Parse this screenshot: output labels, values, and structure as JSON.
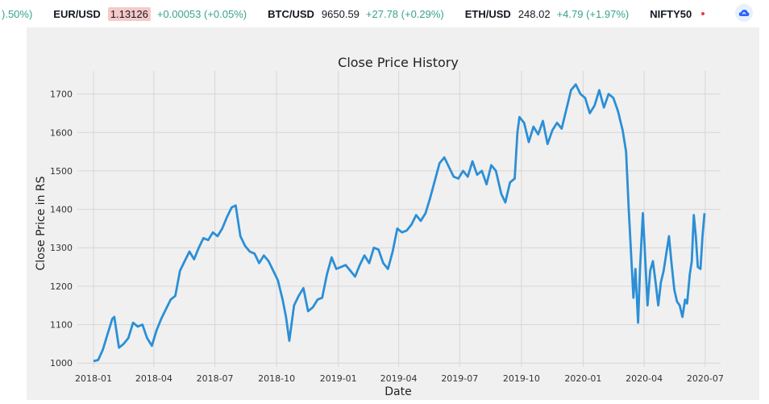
{
  "ticker": [
    {
      "symbol": "",
      "price": "",
      "change": ").50%)",
      "highlight": false
    },
    {
      "symbol": "EUR/USD",
      "price": "1.13126",
      "change": "+0.00053 (+0.05%)",
      "highlight": true
    },
    {
      "symbol": "BTC/USD",
      "price": "9650.59",
      "change": "+27.78 (+0.29%)",
      "highlight": false
    },
    {
      "symbol": "ETH/USD",
      "price": "248.02",
      "change": "+4.79 (+1.97%)",
      "highlight": false
    },
    {
      "symbol": "NIFTY50",
      "price": "",
      "change": "",
      "highlight": false
    }
  ],
  "colors": {
    "up": "#37a38a",
    "down": "#f23645",
    "line": "#2b8fd6"
  },
  "icons": {
    "logo": "tradingview-cloud-icon"
  },
  "chart_data": {
    "type": "line",
    "title": "Close Price History",
    "xlabel": "Date",
    "ylabel": "Close Price in RS",
    "ylim": [
      990,
      1760
    ],
    "xlim": [
      "2017-12-08",
      "2020-07-24"
    ],
    "yticks": [
      1000,
      1100,
      1200,
      1300,
      1400,
      1500,
      1600,
      1700
    ],
    "xticks": [
      "2018-01",
      "2018-04",
      "2018-07",
      "2018-10",
      "2019-01",
      "2019-04",
      "2019-07",
      "2019-10",
      "2020-01",
      "2020-04",
      "2020-07"
    ],
    "grid": true,
    "series": [
      {
        "name": "",
        "points": [
          [
            "2018-01-01",
            1005
          ],
          [
            "2018-01-08",
            1008
          ],
          [
            "2018-01-15",
            1035
          ],
          [
            "2018-01-22",
            1075
          ],
          [
            "2018-01-29",
            1115
          ],
          [
            "2018-02-01",
            1120
          ],
          [
            "2018-02-08",
            1040
          ],
          [
            "2018-02-15",
            1050
          ],
          [
            "2018-02-22",
            1065
          ],
          [
            "2018-03-01",
            1105
          ],
          [
            "2018-03-08",
            1095
          ],
          [
            "2018-03-15",
            1100
          ],
          [
            "2018-03-22",
            1065
          ],
          [
            "2018-03-29",
            1045
          ],
          [
            "2018-04-05",
            1085
          ],
          [
            "2018-04-12",
            1115
          ],
          [
            "2018-04-19",
            1140
          ],
          [
            "2018-04-26",
            1165
          ],
          [
            "2018-05-03",
            1175
          ],
          [
            "2018-05-10",
            1240
          ],
          [
            "2018-05-17",
            1265
          ],
          [
            "2018-05-24",
            1290
          ],
          [
            "2018-05-31",
            1270
          ],
          [
            "2018-06-07",
            1300
          ],
          [
            "2018-06-14",
            1325
          ],
          [
            "2018-06-21",
            1320
          ],
          [
            "2018-06-28",
            1340
          ],
          [
            "2018-07-05",
            1330
          ],
          [
            "2018-07-12",
            1350
          ],
          [
            "2018-07-19",
            1380
          ],
          [
            "2018-07-26",
            1405
          ],
          [
            "2018-08-01",
            1410
          ],
          [
            "2018-08-08",
            1330
          ],
          [
            "2018-08-15",
            1305
          ],
          [
            "2018-08-22",
            1290
          ],
          [
            "2018-08-29",
            1285
          ],
          [
            "2018-09-05",
            1260
          ],
          [
            "2018-09-12",
            1280
          ],
          [
            "2018-09-19",
            1265
          ],
          [
            "2018-09-26",
            1240
          ],
          [
            "2018-10-03",
            1215
          ],
          [
            "2018-10-10",
            1165
          ],
          [
            "2018-10-15",
            1120
          ],
          [
            "2018-10-20",
            1058
          ],
          [
            "2018-10-27",
            1150
          ],
          [
            "2018-11-03",
            1175
          ],
          [
            "2018-11-10",
            1195
          ],
          [
            "2018-11-17",
            1135
          ],
          [
            "2018-11-24",
            1145
          ],
          [
            "2018-12-01",
            1165
          ],
          [
            "2018-12-08",
            1170
          ],
          [
            "2018-12-15",
            1230
          ],
          [
            "2018-12-22",
            1275
          ],
          [
            "2018-12-29",
            1245
          ],
          [
            "2019-01-05",
            1250
          ],
          [
            "2019-01-12",
            1255
          ],
          [
            "2019-01-19",
            1240
          ],
          [
            "2019-01-26",
            1225
          ],
          [
            "2019-02-02",
            1255
          ],
          [
            "2019-02-09",
            1280
          ],
          [
            "2019-02-16",
            1260
          ],
          [
            "2019-02-23",
            1300
          ],
          [
            "2019-03-02",
            1295
          ],
          [
            "2019-03-09",
            1260
          ],
          [
            "2019-03-16",
            1245
          ],
          [
            "2019-03-23",
            1290
          ],
          [
            "2019-03-30",
            1350
          ],
          [
            "2019-04-06",
            1340
          ],
          [
            "2019-04-13",
            1345
          ],
          [
            "2019-04-20",
            1360
          ],
          [
            "2019-04-27",
            1385
          ],
          [
            "2019-05-04",
            1370
          ],
          [
            "2019-05-11",
            1390
          ],
          [
            "2019-05-18",
            1430
          ],
          [
            "2019-05-25",
            1475
          ],
          [
            "2019-06-01",
            1520
          ],
          [
            "2019-06-08",
            1535
          ],
          [
            "2019-06-15",
            1510
          ],
          [
            "2019-06-22",
            1485
          ],
          [
            "2019-06-29",
            1480
          ],
          [
            "2019-07-06",
            1500
          ],
          [
            "2019-07-13",
            1485
          ],
          [
            "2019-07-20",
            1525
          ],
          [
            "2019-07-27",
            1490
          ],
          [
            "2019-08-03",
            1500
          ],
          [
            "2019-08-10",
            1465
          ],
          [
            "2019-08-17",
            1515
          ],
          [
            "2019-08-24",
            1500
          ],
          [
            "2019-09-01",
            1440
          ],
          [
            "2019-09-07",
            1418
          ],
          [
            "2019-09-14",
            1470
          ],
          [
            "2019-09-21",
            1480
          ],
          [
            "2019-09-25",
            1600
          ],
          [
            "2019-09-28",
            1640
          ],
          [
            "2019-10-05",
            1625
          ],
          [
            "2019-10-12",
            1575
          ],
          [
            "2019-10-19",
            1615
          ],
          [
            "2019-10-26",
            1595
          ],
          [
            "2019-11-02",
            1630
          ],
          [
            "2019-11-09",
            1570
          ],
          [
            "2019-11-16",
            1605
          ],
          [
            "2019-11-23",
            1625
          ],
          [
            "2019-11-30",
            1610
          ],
          [
            "2019-12-07",
            1660
          ],
          [
            "2019-12-14",
            1710
          ],
          [
            "2019-12-21",
            1725
          ],
          [
            "2019-12-28",
            1700
          ],
          [
            "2020-01-04",
            1690
          ],
          [
            "2020-01-11",
            1650
          ],
          [
            "2020-01-18",
            1670
          ],
          [
            "2020-01-25",
            1710
          ],
          [
            "2020-02-01",
            1665
          ],
          [
            "2020-02-08",
            1700
          ],
          [
            "2020-02-15",
            1690
          ],
          [
            "2020-02-22",
            1655
          ],
          [
            "2020-02-29",
            1605
          ],
          [
            "2020-03-05",
            1550
          ],
          [
            "2020-03-09",
            1400
          ],
          [
            "2020-03-12",
            1300
          ],
          [
            "2020-03-16",
            1170
          ],
          [
            "2020-03-19",
            1245
          ],
          [
            "2020-03-23",
            1105
          ],
          [
            "2020-03-26",
            1250
          ],
          [
            "2020-03-30",
            1390
          ],
          [
            "2020-04-02",
            1290
          ],
          [
            "2020-04-06",
            1150
          ],
          [
            "2020-04-10",
            1240
          ],
          [
            "2020-04-14",
            1265
          ],
          [
            "2020-04-18",
            1210
          ],
          [
            "2020-04-22",
            1150
          ],
          [
            "2020-04-26",
            1210
          ],
          [
            "2020-04-30",
            1240
          ],
          [
            "2020-05-04",
            1285
          ],
          [
            "2020-05-08",
            1330
          ],
          [
            "2020-05-12",
            1255
          ],
          [
            "2020-05-16",
            1190
          ],
          [
            "2020-05-20",
            1160
          ],
          [
            "2020-05-24",
            1150
          ],
          [
            "2020-05-28",
            1120
          ],
          [
            "2020-06-01",
            1165
          ],
          [
            "2020-06-04",
            1155
          ],
          [
            "2020-06-08",
            1230
          ],
          [
            "2020-06-11",
            1265
          ],
          [
            "2020-06-14",
            1385
          ],
          [
            "2020-06-17",
            1330
          ],
          [
            "2020-06-20",
            1250
          ],
          [
            "2020-06-24",
            1245
          ],
          [
            "2020-06-27",
            1330
          ],
          [
            "2020-06-30",
            1390
          ]
        ]
      }
    ]
  }
}
